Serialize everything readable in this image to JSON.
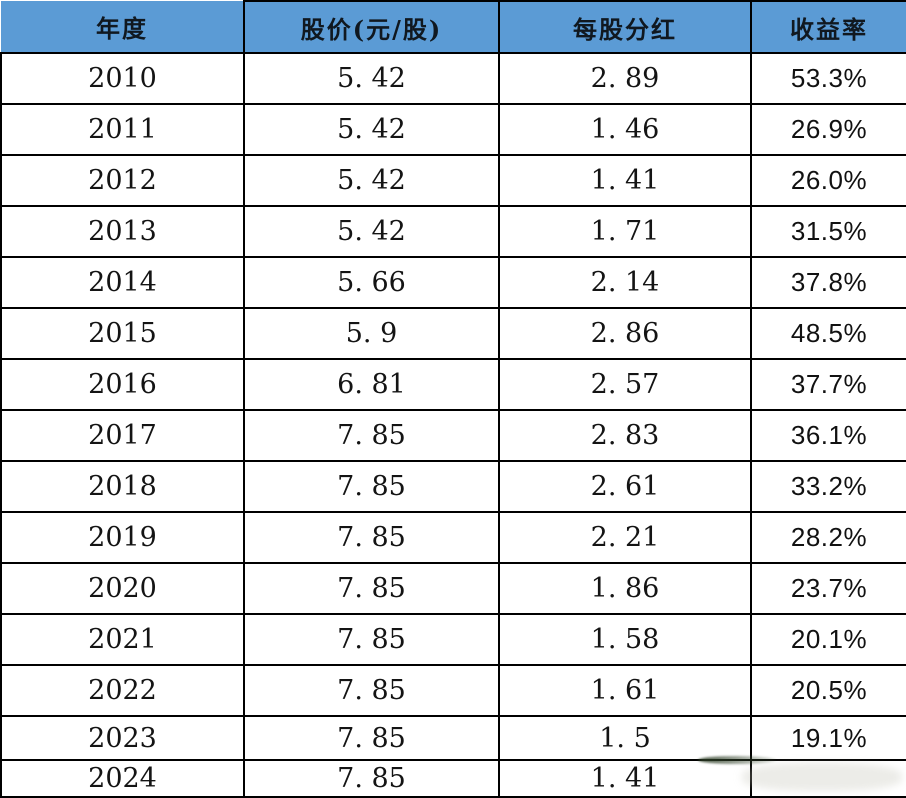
{
  "table": {
    "headers": [
      "年度",
      "股价(元/股)",
      "每股分红",
      "收益率"
    ],
    "rows": [
      {
        "year": "2010",
        "price": "5. 42",
        "dividend": "2. 89",
        "yield": "53.3%"
      },
      {
        "year": "2011",
        "price": "5. 42",
        "dividend": "1. 46",
        "yield": "26.9%"
      },
      {
        "year": "2012",
        "price": "5. 42",
        "dividend": "1. 41",
        "yield": "26.0%"
      },
      {
        "year": "2013",
        "price": "5. 42",
        "dividend": "1. 71",
        "yield": "31.5%"
      },
      {
        "year": "2014",
        "price": "5. 66",
        "dividend": "2. 14",
        "yield": "37.8%"
      },
      {
        "year": "2015",
        "price": "5. 9",
        "dividend": "2. 86",
        "yield": "48.5%"
      },
      {
        "year": "2016",
        "price": "6. 81",
        "dividend": "2. 57",
        "yield": "37.7%"
      },
      {
        "year": "2017",
        "price": "7. 85",
        "dividend": "2. 83",
        "yield": "36.1%"
      },
      {
        "year": "2018",
        "price": "7. 85",
        "dividend": "2. 61",
        "yield": "33.2%"
      },
      {
        "year": "2019",
        "price": "7. 85",
        "dividend": "2. 21",
        "yield": "28.2%"
      },
      {
        "year": "2020",
        "price": "7. 85",
        "dividend": "1. 86",
        "yield": "23.7%"
      },
      {
        "year": "2021",
        "price": "7. 85",
        "dividend": "1. 58",
        "yield": "20.1%"
      },
      {
        "year": "2022",
        "price": "7. 85",
        "dividend": "1. 61",
        "yield": "20.5%"
      },
      {
        "year": "2023",
        "price": "7. 85",
        "dividend": "1. 5",
        "yield": "19.1%"
      },
      {
        "year": "2024",
        "price": "7. 85",
        "dividend": "1. 41",
        "yield": ""
      }
    ]
  },
  "chart_data": {
    "type": "table",
    "columns": [
      "年度",
      "股价(元/股)",
      "每股分红",
      "收益率"
    ],
    "rows": [
      [
        "2010",
        5.42,
        2.89,
        "53.3%"
      ],
      [
        "2011",
        5.42,
        1.46,
        "26.9%"
      ],
      [
        "2012",
        5.42,
        1.41,
        "26.0%"
      ],
      [
        "2013",
        5.42,
        1.71,
        "31.5%"
      ],
      [
        "2014",
        5.66,
        2.14,
        "37.8%"
      ],
      [
        "2015",
        5.9,
        2.86,
        "48.5%"
      ],
      [
        "2016",
        6.81,
        2.57,
        "37.7%"
      ],
      [
        "2017",
        7.85,
        2.83,
        "36.1%"
      ],
      [
        "2018",
        7.85,
        2.61,
        "33.2%"
      ],
      [
        "2019",
        7.85,
        2.21,
        "28.2%"
      ],
      [
        "2020",
        7.85,
        1.86,
        "23.7%"
      ],
      [
        "2021",
        7.85,
        1.58,
        "20.1%"
      ],
      [
        "2022",
        7.85,
        1.61,
        "20.5%"
      ],
      [
        "2023",
        7.85,
        1.5,
        "19.1%"
      ],
      [
        "2024",
        7.85,
        1.41,
        ""
      ]
    ]
  },
  "colors": {
    "header_bg": "#5B9BD5",
    "border": "#000000",
    "body_bg": "#FFFFFF",
    "text": "#141414"
  }
}
